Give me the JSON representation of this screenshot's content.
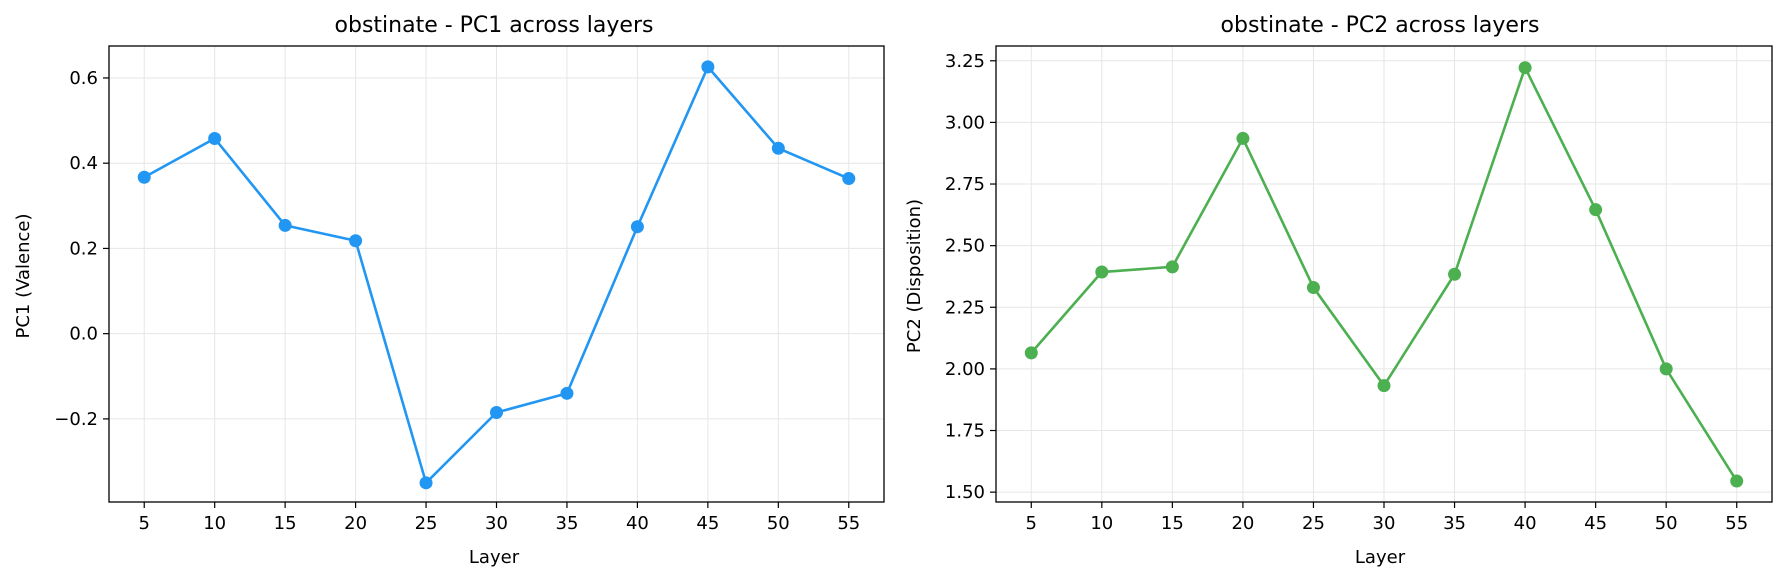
{
  "chart_data": [
    {
      "type": "line",
      "title": "obstinate - PC1 across layers",
      "xlabel": "Layer",
      "ylabel": "PC1 (Valence)",
      "x": [
        5,
        10,
        15,
        20,
        25,
        30,
        35,
        40,
        45,
        50,
        55
      ],
      "xticks": [
        "5",
        "10",
        "15",
        "20",
        "25",
        "30",
        "35",
        "40",
        "45",
        "50",
        "55"
      ],
      "yticks": [
        -0.2,
        0.0,
        0.2,
        0.4,
        0.6
      ],
      "ytick_labels": [
        "−0.2",
        "0.0",
        "0.2",
        "0.4",
        "0.6"
      ],
      "xlim": [
        2.5,
        57.5
      ],
      "ylim": [
        -0.395,
        0.675
      ],
      "grid": true,
      "color": "#2196f3",
      "series": [
        {
          "values": [
            0.367,
            0.458,
            0.254,
            0.218,
            -0.35,
            -0.185,
            -0.14,
            0.251,
            0.626,
            0.435,
            0.364
          ]
        }
      ]
    },
    {
      "type": "line",
      "title": "obstinate - PC2 across layers",
      "xlabel": "Layer",
      "ylabel": "PC2 (Disposition)",
      "x": [
        5,
        10,
        15,
        20,
        25,
        30,
        35,
        40,
        45,
        50,
        55
      ],
      "xticks": [
        "5",
        "10",
        "15",
        "20",
        "25",
        "30",
        "35",
        "40",
        "45",
        "50",
        "55"
      ],
      "yticks": [
        1.5,
        1.75,
        2.0,
        2.25,
        2.5,
        2.75,
        3.0,
        3.25
      ],
      "ytick_labels": [
        "1.50",
        "1.75",
        "2.00",
        "2.25",
        "2.50",
        "2.75",
        "3.00",
        "3.25"
      ],
      "xlim": [
        2.5,
        57.5
      ],
      "ylim": [
        1.46,
        3.31
      ],
      "grid": true,
      "color": "#4caf50",
      "series": [
        {
          "values": [
            2.065,
            2.393,
            2.414,
            2.935,
            2.33,
            1.932,
            2.384,
            3.222,
            2.646,
            2.0,
            1.545
          ]
        }
      ]
    }
  ]
}
